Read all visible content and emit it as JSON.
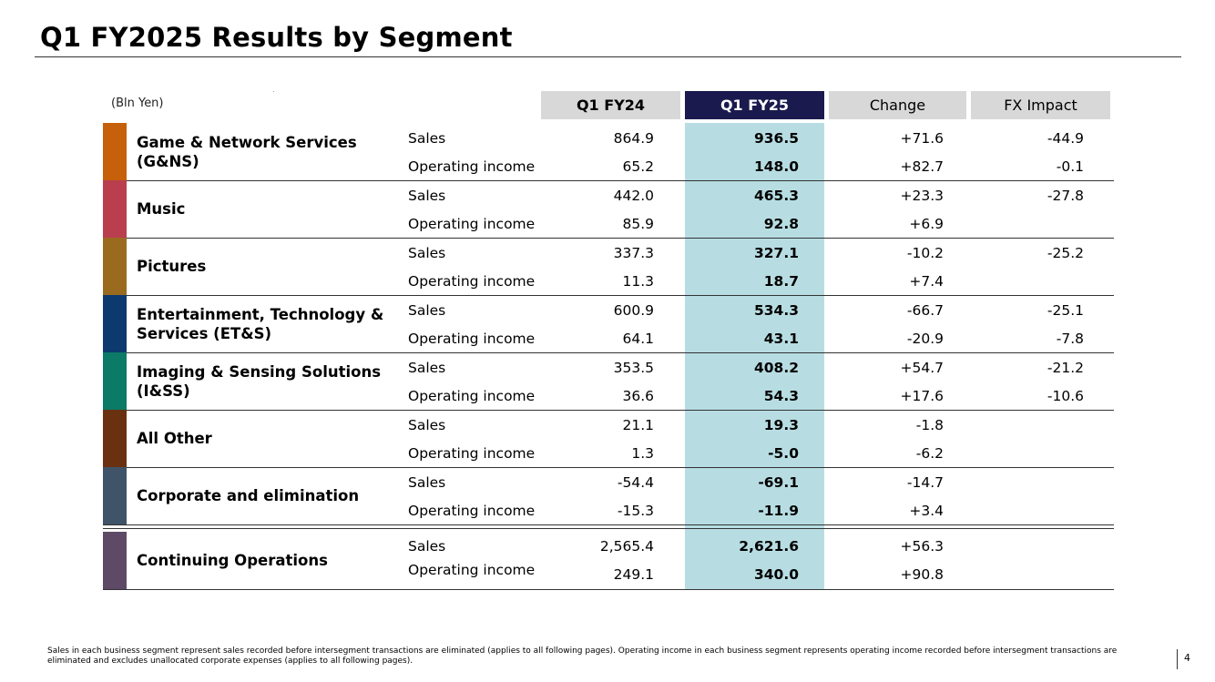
{
  "title": "Q1 FY2025 Results by Segment",
  "unit_label": "(Bln Yen)",
  "columns": {
    "fy24": "Q1 FY24",
    "fy25": "Q1 FY25",
    "change": "Change",
    "fx": "FX Impact"
  },
  "segments": [
    {
      "name": "Game & Network Services (G&NS)",
      "color": "#c7600a",
      "sales": {
        "label": "Sales",
        "fy24": "864.9",
        "fy25": "936.5",
        "change": "+71.6",
        "fx": "-44.9"
      },
      "oi": {
        "label": "Operating income",
        "fy24": "65.2",
        "fy25": "148.0",
        "change": "+82.7",
        "fx": "-0.1"
      }
    },
    {
      "name": "Music",
      "color": "#b93e4e",
      "sales": {
        "label": "Sales",
        "fy24": "442.0",
        "fy25": "465.3",
        "change": "+23.3",
        "fx": "-27.8"
      },
      "oi": {
        "label": "Operating income",
        "fy24": "85.9",
        "fy25": "92.8",
        "change": "+6.9",
        "fx": ""
      }
    },
    {
      "name": "Pictures",
      "color": "#9a6b1f",
      "sales": {
        "label": "Sales",
        "fy24": "337.3",
        "fy25": "327.1",
        "change": "-10.2",
        "fx": "-25.2"
      },
      "oi": {
        "label": "Operating income",
        "fy24": "11.3",
        "fy25": "18.7",
        "change": "+7.4",
        "fx": ""
      }
    },
    {
      "name": "Entertainment, Technology & Services (ET&S)",
      "color": "#0c3a6e",
      "sales": {
        "label": "Sales",
        "fy24": "600.9",
        "fy25": "534.3",
        "change": "-66.7",
        "fx": "-25.1"
      },
      "oi": {
        "label": "Operating income",
        "fy24": "64.1",
        "fy25": "43.1",
        "change": "-20.9",
        "fx": "-7.8"
      }
    },
    {
      "name": "Imaging & Sensing Solutions (I&SS)",
      "color": "#0b7a66",
      "sales": {
        "label": "Sales",
        "fy24": "353.5",
        "fy25": "408.2",
        "change": "+54.7",
        "fx": "-21.2"
      },
      "oi": {
        "label": "Operating income",
        "fy24": "36.6",
        "fy25": "54.3",
        "change": "+17.6",
        "fx": "-10.6"
      }
    },
    {
      "name": "All Other",
      "color": "#6a3110",
      "sales": {
        "label": "Sales",
        "fy24": "21.1",
        "fy25": "19.3",
        "change": "-1.8",
        "fx": ""
      },
      "oi": {
        "label": "Operating income",
        "fy24": "1.3",
        "fy25": "-5.0",
        "change": "-6.2",
        "fx": ""
      }
    },
    {
      "name": "Corporate and elimination",
      "color": "#3f5468",
      "sales": {
        "label": "Sales",
        "fy24": "-54.4",
        "fy25": "-69.1",
        "change": "-14.7",
        "fx": ""
      },
      "oi": {
        "label": "Operating income",
        "fy24": "-15.3",
        "fy25": "-11.9",
        "change": "+3.4",
        "fx": ""
      }
    },
    {
      "name": "Continuing Operations",
      "color": "#5e4a66",
      "sales": {
        "label": "Sales",
        "fy24": "2,565.4",
        "fy25": "2,621.6",
        "change": "+56.3",
        "fx": ""
      },
      "oi": {
        "label": "Operating income",
        "fy24": "249.1",
        "fy25": "340.0",
        "change": "+90.8",
        "fx": ""
      }
    }
  ],
  "footnote": "Sales in each business segment represent sales recorded before intersegment transactions are eliminated (applies to all following pages). Operating income in each business segment represents operating income recorded before intersegment transactions are eliminated and excludes unallocated corporate expenses (applies to all following pages).",
  "page_number": "4"
}
